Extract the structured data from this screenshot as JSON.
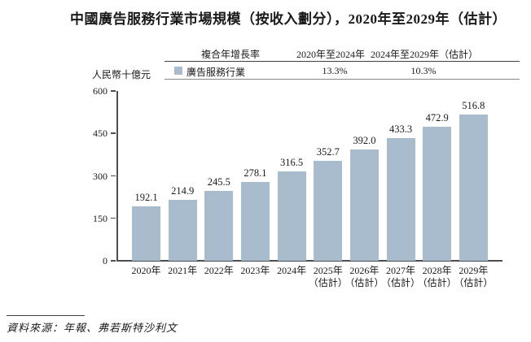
{
  "title": "中國廣告服務行業市場規模（按收入劃分），2020年至2029年（估計）",
  "legend": {
    "cagr_header": "複合年增長率",
    "col1_header": "2020年至2024年",
    "col2_header": "2024年至2029年（估計）",
    "series_label": "廣告服務行業",
    "col1_value": "13.3%",
    "col2_value": "10.3%",
    "swatch_color": "#a9bcce"
  },
  "source": {
    "text": "資料來源：年報、弗若斯特沙利文"
  },
  "colors": {
    "bar": "#a9bcce",
    "axis": "#4d4d4d",
    "text": "#1a1a1a"
  },
  "chart_data": {
    "type": "bar",
    "title": "中國廣告服務行業市場規模（按收入劃分），2020年至2029年（估計）",
    "ylabel": "人民幣十億元",
    "xlabel": "",
    "ylim": [
      0,
      600
    ],
    "yticks": [
      600,
      450,
      300,
      150,
      0
    ],
    "grid": false,
    "legend_position": "top",
    "bar_color": "#a9bcce",
    "categories": [
      [
        "2020年"
      ],
      [
        "2021年"
      ],
      [
        "2022年"
      ],
      [
        "2023年"
      ],
      [
        "2024年"
      ],
      [
        "2025年",
        "（估計）"
      ],
      [
        "2026年",
        "（估計）"
      ],
      [
        "2027年",
        "（估計）"
      ],
      [
        "2028年",
        "（估計）"
      ],
      [
        "2029年",
        "（估計）"
      ]
    ],
    "values": [
      192.1,
      214.9,
      245.5,
      278.1,
      316.5,
      352.7,
      392.0,
      433.3,
      472.9,
      516.8
    ],
    "cagr": [
      {
        "period": "2020年至2024年",
        "value": "13.3%"
      },
      {
        "period": "2024年至2029年（估計）",
        "value": "10.3%"
      }
    ]
  }
}
